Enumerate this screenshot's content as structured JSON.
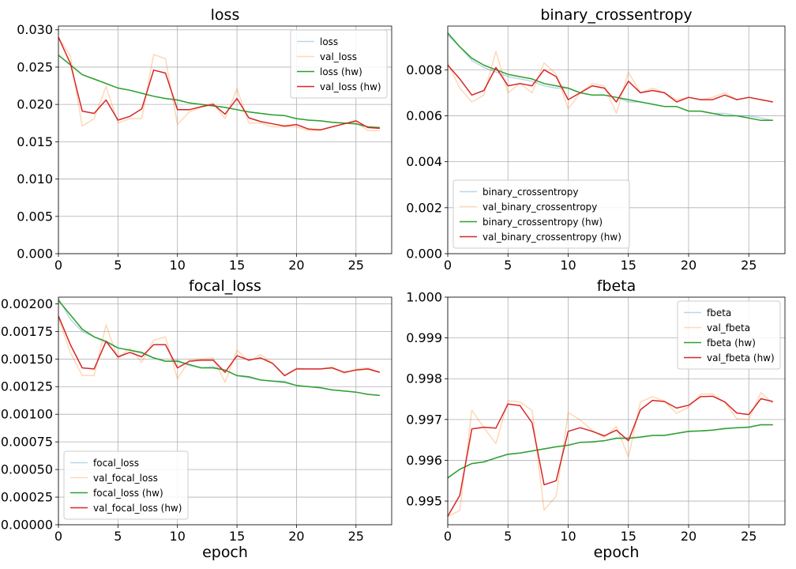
{
  "chart_data": [
    {
      "type": "line",
      "title": "loss",
      "xlabel": "",
      "ylabel": "",
      "xlim": [
        0,
        28
      ],
      "ylim": [
        0,
        0.0305
      ],
      "xticks": [
        0,
        5,
        10,
        15,
        20,
        25
      ],
      "yticks": [
        0.0,
        0.005,
        0.01,
        0.015,
        0.02,
        0.025,
        0.03
      ],
      "ytick_labels": [
        "0.000",
        "0.005",
        "0.010",
        "0.015",
        "0.020",
        "0.025",
        "0.030"
      ],
      "grid": true,
      "legend_position": "top-right",
      "x": [
        0,
        1,
        2,
        3,
        4,
        5,
        6,
        7,
        8,
        9,
        10,
        11,
        12,
        13,
        14,
        15,
        16,
        17,
        18,
        19,
        20,
        21,
        22,
        23,
        24,
        25,
        26,
        27
      ],
      "series": [
        {
          "name": "loss",
          "color": "#1f77b4",
          "alpha": 0.3,
          "values": [
            0.0266,
            0.0253,
            0.024,
            0.0234,
            0.0228,
            0.0222,
            0.0219,
            0.0215,
            0.0211,
            0.0208,
            0.0206,
            0.0202,
            0.02,
            0.0198,
            0.0196,
            0.0193,
            0.019,
            0.0188,
            0.0186,
            0.0185,
            0.0181,
            0.0179,
            0.0178,
            0.0176,
            0.0175,
            0.0174,
            0.017,
            0.0168
          ]
        },
        {
          "name": "val_loss",
          "color": "#ff7f0e",
          "alpha": 0.3,
          "values": [
            0.029,
            0.0265,
            0.0171,
            0.0181,
            0.0224,
            0.0175,
            0.0181,
            0.0181,
            0.0267,
            0.0261,
            0.0173,
            0.019,
            0.0196,
            0.0202,
            0.0181,
            0.0221,
            0.0175,
            0.0175,
            0.017,
            0.017,
            0.017,
            0.0165,
            0.0165,
            0.017,
            0.0174,
            0.0176,
            0.0165,
            0.0165
          ]
        },
        {
          "name": "loss (hw)",
          "color": "#2ca02c",
          "alpha": 1,
          "values": [
            0.0266,
            0.0253,
            0.024,
            0.0234,
            0.0228,
            0.0222,
            0.0219,
            0.0215,
            0.0211,
            0.0208,
            0.0206,
            0.0202,
            0.02,
            0.0198,
            0.0196,
            0.0193,
            0.019,
            0.0188,
            0.0186,
            0.0185,
            0.0181,
            0.0179,
            0.0178,
            0.0176,
            0.0175,
            0.0174,
            0.017,
            0.0169
          ]
        },
        {
          "name": "val_loss (hw)",
          "color": "#d62728",
          "alpha": 1,
          "values": [
            0.029,
            0.0255,
            0.0191,
            0.0188,
            0.0206,
            0.0179,
            0.0184,
            0.0194,
            0.0246,
            0.0242,
            0.0193,
            0.0193,
            0.0197,
            0.02,
            0.0187,
            0.0208,
            0.0182,
            0.0177,
            0.0174,
            0.0171,
            0.0173,
            0.0167,
            0.0166,
            0.017,
            0.0174,
            0.0178,
            0.0169,
            0.0168
          ]
        }
      ]
    },
    {
      "type": "line",
      "title": "binary_crossentropy",
      "xlabel": "",
      "ylabel": "",
      "xlim": [
        0,
        28
      ],
      "ylim": [
        0,
        0.0099
      ],
      "xticks": [
        0,
        5,
        10,
        15,
        20,
        25
      ],
      "yticks": [
        0.0,
        0.002,
        0.004,
        0.006,
        0.008
      ],
      "ytick_labels": [
        "0.000",
        "0.002",
        "0.004",
        "0.006",
        "0.008"
      ],
      "grid": true,
      "legend_position": "bottom-left",
      "x": [
        0,
        1,
        2,
        3,
        4,
        5,
        6,
        7,
        8,
        9,
        10,
        11,
        12,
        13,
        14,
        15,
        16,
        17,
        18,
        19,
        20,
        21,
        22,
        23,
        24,
        25,
        26,
        27
      ],
      "series": [
        {
          "name": "binary_crossentropy",
          "color": "#1f77b4",
          "alpha": 0.3,
          "values": [
            0.0095,
            0.009,
            0.0084,
            0.0081,
            0.0079,
            0.0077,
            0.0076,
            0.0075,
            0.0073,
            0.0072,
            0.0072,
            0.007,
            0.0069,
            0.0069,
            0.0068,
            0.0066,
            0.0066,
            0.0065,
            0.0064,
            0.0064,
            0.0062,
            0.0062,
            0.0061,
            0.0061,
            0.006,
            0.006,
            0.0059,
            0.0058
          ]
        },
        {
          "name": "val_binary_crossentropy",
          "color": "#ff7f0e",
          "alpha": 0.3,
          "values": [
            0.0083,
            0.0072,
            0.0066,
            0.0069,
            0.0088,
            0.007,
            0.0074,
            0.007,
            0.0083,
            0.0078,
            0.0063,
            0.007,
            0.0074,
            0.0073,
            0.0061,
            0.0079,
            0.007,
            0.0072,
            0.007,
            0.0067,
            0.0068,
            0.0067,
            0.0068,
            0.007,
            0.0067,
            0.0068,
            0.0067,
            0.0066
          ]
        },
        {
          "name": "binary_crossentropy (hw)",
          "color": "#2ca02c",
          "alpha": 1,
          "values": [
            0.0096,
            0.009,
            0.0085,
            0.0082,
            0.008,
            0.0078,
            0.0077,
            0.0076,
            0.0074,
            0.0073,
            0.0072,
            0.007,
            0.0069,
            0.0069,
            0.0068,
            0.0067,
            0.0066,
            0.0065,
            0.0064,
            0.0064,
            0.0062,
            0.0062,
            0.0061,
            0.006,
            0.006,
            0.0059,
            0.0058,
            0.0058
          ]
        },
        {
          "name": "val_binary_crossentropy (hw)",
          "color": "#d62728",
          "alpha": 1,
          "values": [
            0.0082,
            0.0076,
            0.0069,
            0.0071,
            0.0081,
            0.0073,
            0.0074,
            0.0073,
            0.008,
            0.0077,
            0.0067,
            0.007,
            0.0073,
            0.0072,
            0.0066,
            0.0075,
            0.007,
            0.0071,
            0.007,
            0.0066,
            0.0068,
            0.0067,
            0.0067,
            0.0069,
            0.0067,
            0.0068,
            0.0067,
            0.0066
          ]
        }
      ]
    },
    {
      "type": "line",
      "title": "focal_loss",
      "xlabel": "epoch",
      "ylabel": "",
      "xlim": [
        0,
        28
      ],
      "ylim": [
        0,
        0.00206
      ],
      "xticks": [
        0,
        5,
        10,
        15,
        20,
        25
      ],
      "yticks": [
        0.0,
        0.00025,
        0.0005,
        0.00075,
        0.001,
        0.00125,
        0.0015,
        0.00175,
        0.002
      ],
      "ytick_labels": [
        "0.00000",
        "0.00025",
        "0.00050",
        "0.00075",
        "0.00100",
        "0.00125",
        "0.00150",
        "0.00175",
        "0.00200"
      ],
      "grid": true,
      "legend_position": "bottom-left",
      "x": [
        0,
        1,
        2,
        3,
        4,
        5,
        6,
        7,
        8,
        9,
        10,
        11,
        12,
        13,
        14,
        15,
        16,
        17,
        18,
        19,
        20,
        21,
        22,
        23,
        24,
        25,
        26,
        27
      ],
      "series": [
        {
          "name": "focal_loss",
          "color": "#1f77b4",
          "alpha": 0.3,
          "values": [
            0.00205,
            0.00186,
            0.00175,
            0.0017,
            0.00165,
            0.0016,
            0.00158,
            0.00155,
            0.00151,
            0.00148,
            0.00149,
            0.00144,
            0.00142,
            0.00143,
            0.0014,
            0.00135,
            0.00133,
            0.00131,
            0.0013,
            0.0013,
            0.00126,
            0.00125,
            0.00124,
            0.00122,
            0.00121,
            0.0012,
            0.00118,
            0.00117
          ]
        },
        {
          "name": "val_focal_loss",
          "color": "#ff7f0e",
          "alpha": 0.3,
          "values": [
            0.00187,
            0.00156,
            0.00135,
            0.00135,
            0.00181,
            0.0015,
            0.0016,
            0.00147,
            0.00167,
            0.0017,
            0.00132,
            0.00149,
            0.0015,
            0.00151,
            0.00129,
            0.00158,
            0.00148,
            0.00154,
            0.00146,
            0.00135,
            0.00142,
            0.00141,
            0.00141,
            0.00143,
            0.00137,
            0.00141,
            0.00142,
            0.00138
          ]
        },
        {
          "name": "focal_loss (hw)",
          "color": "#2ca02c",
          "alpha": 1,
          "values": [
            0.00203,
            0.0019,
            0.00177,
            0.0017,
            0.00166,
            0.0016,
            0.00158,
            0.00156,
            0.00151,
            0.00148,
            0.00148,
            0.00145,
            0.00142,
            0.00142,
            0.0014,
            0.00135,
            0.00134,
            0.00131,
            0.0013,
            0.00129,
            0.00126,
            0.00125,
            0.00124,
            0.00122,
            0.00121,
            0.0012,
            0.00118,
            0.00117
          ]
        },
        {
          "name": "val_focal_loss (hw)",
          "color": "#d62728",
          "alpha": 1,
          "values": [
            0.00189,
            0.00163,
            0.00142,
            0.00141,
            0.00166,
            0.00152,
            0.00156,
            0.00152,
            0.00163,
            0.00163,
            0.00142,
            0.00148,
            0.00149,
            0.00149,
            0.00138,
            0.00153,
            0.00149,
            0.00151,
            0.00146,
            0.00135,
            0.00141,
            0.00141,
            0.00141,
            0.00142,
            0.00138,
            0.0014,
            0.00141,
            0.00138
          ]
        }
      ]
    },
    {
      "type": "line",
      "title": "fbeta",
      "xlabel": "epoch",
      "ylabel": "",
      "xlim": [
        0,
        28
      ],
      "ylim": [
        0.99442,
        1.0
      ],
      "xticks": [
        0,
        5,
        10,
        15,
        20,
        25
      ],
      "yticks": [
        0.995,
        0.996,
        0.997,
        0.998,
        0.999,
        1.0
      ],
      "ytick_labels": [
        "0.995",
        "0.996",
        "0.997",
        "0.998",
        "0.999",
        "1.000"
      ],
      "grid": true,
      "legend_position": "top-right",
      "x": [
        0,
        1,
        2,
        3,
        4,
        5,
        6,
        7,
        8,
        9,
        10,
        11,
        12,
        13,
        14,
        15,
        16,
        17,
        18,
        19,
        20,
        21,
        22,
        23,
        24,
        25,
        26,
        27
      ],
      "series": [
        {
          "name": "fbeta",
          "color": "#1f77b4",
          "alpha": 0.3,
          "values": [
            0.99556,
            0.99578,
            0.99592,
            0.99596,
            0.99606,
            0.99614,
            0.99618,
            0.99623,
            0.99628,
            0.99633,
            0.99637,
            0.99644,
            0.99646,
            0.99648,
            0.99655,
            0.99655,
            0.99656,
            0.99661,
            0.99662,
            0.99666,
            0.9967,
            0.99672,
            0.99674,
            0.99677,
            0.9968,
            0.99682,
            0.99687,
            0.99687
          ]
        },
        {
          "name": "val_fbeta",
          "color": "#ff7f0e",
          "alpha": 0.3,
          "values": [
            0.99462,
            0.99477,
            0.99723,
            0.9968,
            0.99641,
            0.99746,
            0.99743,
            0.99722,
            0.99478,
            0.99512,
            0.99717,
            0.99699,
            0.99673,
            0.99656,
            0.99683,
            0.99608,
            0.99743,
            0.99756,
            0.99745,
            0.99715,
            0.9973,
            0.99762,
            0.99763,
            0.99742,
            0.99702,
            0.997,
            0.99766,
            0.9974
          ]
        },
        {
          "name": "fbeta (hw)",
          "color": "#2ca02c",
          "alpha": 1,
          "values": [
            0.99557,
            0.99578,
            0.99592,
            0.99596,
            0.99606,
            0.99615,
            0.99618,
            0.99623,
            0.99628,
            0.99633,
            0.99637,
            0.99644,
            0.99645,
            0.99648,
            0.99654,
            0.99654,
            0.99657,
            0.99661,
            0.99661,
            0.99666,
            0.99671,
            0.99672,
            0.99674,
            0.99678,
            0.9968,
            0.99681,
            0.99687,
            0.99687
          ]
        },
        {
          "name": "val_fbeta (hw)",
          "color": "#d62728",
          "alpha": 1,
          "values": [
            0.99463,
            0.99514,
            0.99677,
            0.99681,
            0.99679,
            0.99738,
            0.99734,
            0.99692,
            0.9954,
            0.9955,
            0.99671,
            0.9968,
            0.99671,
            0.9966,
            0.99674,
            0.99648,
            0.99724,
            0.99747,
            0.99744,
            0.99728,
            0.99735,
            0.99756,
            0.99757,
            0.99743,
            0.99716,
            0.99712,
            0.99751,
            0.99744
          ]
        }
      ]
    }
  ]
}
